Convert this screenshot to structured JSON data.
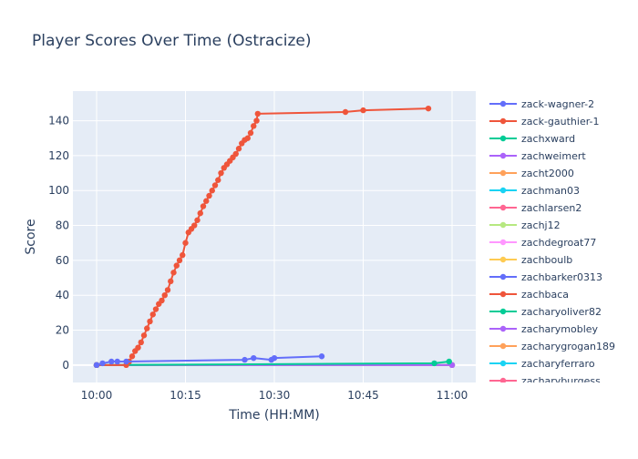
{
  "chart_data": {
    "type": "line",
    "title": "Player Scores Over Time (Ostracize)",
    "xlabel": "Time (HH:MM)",
    "ylabel": "Score",
    "x_ticks": [
      "10:00",
      "10:15",
      "10:30",
      "10:45",
      "11:00"
    ],
    "y_ticks": [
      0,
      20,
      40,
      60,
      80,
      100,
      120,
      140
    ],
    "xlim": [
      "09:56",
      "11:04"
    ],
    "ylim": [
      -10,
      157
    ],
    "grid": true,
    "legend_position": "right",
    "legend_clipped_after": "zacharyburgess",
    "series": [
      {
        "name": "zack-wagner-2",
        "color": "#636efa",
        "points": [
          [
            "10:00",
            0
          ],
          [
            "10:01",
            1
          ],
          [
            "10:02.5",
            2
          ],
          [
            "10:03.5",
            2
          ],
          [
            "10:05",
            2
          ],
          [
            "10:25",
            3
          ],
          [
            "10:26.5",
            4
          ],
          [
            "10:29.5",
            3
          ],
          [
            "10:30",
            4
          ],
          [
            "10:38",
            5
          ]
        ]
      },
      {
        "name": "zack-gauthier-1",
        "color": "#ef553b",
        "points": [
          [
            "10:00",
            0
          ],
          [
            "10:05",
            0
          ],
          [
            "10:05.5",
            2
          ],
          [
            "10:06",
            5
          ],
          [
            "10:06.5",
            8
          ],
          [
            "10:07",
            10
          ],
          [
            "10:07.5",
            13
          ],
          [
            "10:08",
            17
          ],
          [
            "10:08.5",
            21
          ],
          [
            "10:09",
            25
          ],
          [
            "10:09.5",
            29
          ],
          [
            "10:10",
            32
          ],
          [
            "10:10.5",
            35
          ],
          [
            "10:11",
            37
          ],
          [
            "10:11.5",
            40
          ],
          [
            "10:12",
            43
          ],
          [
            "10:12.5",
            48
          ],
          [
            "10:13",
            53
          ],
          [
            "10:13.5",
            57
          ],
          [
            "10:14",
            60
          ],
          [
            "10:14.5",
            63
          ],
          [
            "10:15",
            70
          ],
          [
            "10:15.5",
            76
          ],
          [
            "10:16",
            78
          ],
          [
            "10:16.5",
            80
          ],
          [
            "10:17",
            83
          ],
          [
            "10:17.5",
            87
          ],
          [
            "10:18",
            91
          ],
          [
            "10:18.5",
            94
          ],
          [
            "10:19",
            97
          ],
          [
            "10:19.5",
            100
          ],
          [
            "10:20",
            103
          ],
          [
            "10:20.5",
            106
          ],
          [
            "10:21",
            110
          ],
          [
            "10:21.5",
            113
          ],
          [
            "10:22",
            115
          ],
          [
            "10:22.5",
            117
          ],
          [
            "10:23",
            119
          ],
          [
            "10:23.5",
            121
          ],
          [
            "10:24",
            124
          ],
          [
            "10:24.5",
            127
          ],
          [
            "10:25",
            129
          ],
          [
            "10:25.5",
            130
          ],
          [
            "10:26",
            133
          ],
          [
            "10:26.5",
            137
          ],
          [
            "10:27",
            140
          ],
          [
            "10:27.2",
            144
          ],
          [
            "10:42",
            145
          ],
          [
            "10:45",
            146
          ],
          [
            "10:56",
            147
          ]
        ]
      },
      {
        "name": "zachxward",
        "color": "#00cc96",
        "points": [
          [
            "10:00",
            0
          ],
          [
            "10:57",
            1
          ],
          [
            "10:59.5",
            2
          ]
        ]
      },
      {
        "name": "zachweimert",
        "color": "#ab63fa",
        "points": [
          [
            "10:00",
            0
          ],
          [
            "11:00",
            0
          ]
        ]
      },
      {
        "name": "zacht2000",
        "color": "#ffa15a",
        "points": [
          [
            "10:00",
            0
          ],
          [
            "11:00",
            0
          ]
        ]
      },
      {
        "name": "zachman03",
        "color": "#19d3f3",
        "points": [
          [
            "10:00",
            0
          ],
          [
            "11:00",
            0
          ]
        ]
      },
      {
        "name": "zachlarsen2",
        "color": "#ff6692",
        "points": [
          [
            "10:00",
            0
          ],
          [
            "11:00",
            0
          ]
        ]
      },
      {
        "name": "zachj12",
        "color": "#b6e880",
        "points": [
          [
            "10:00",
            0
          ],
          [
            "11:00",
            0
          ]
        ]
      },
      {
        "name": "zachdegroat77",
        "color": "#ff97ff",
        "points": [
          [
            "10:00",
            0
          ],
          [
            "11:00",
            0
          ]
        ]
      },
      {
        "name": "zachboulb",
        "color": "#fecb52",
        "points": [
          [
            "10:00",
            0
          ]
        ]
      },
      {
        "name": "zachbarker0313",
        "color": "#636efa",
        "points": [
          [
            "10:00",
            0
          ]
        ]
      },
      {
        "name": "zachbaca",
        "color": "#ef553b",
        "points": [
          [
            "10:00",
            0
          ]
        ]
      },
      {
        "name": "zacharyoliver82",
        "color": "#00cc96",
        "points": [
          [
            "10:00",
            0
          ]
        ]
      },
      {
        "name": "zacharymobley",
        "color": "#ab63fa",
        "points": [
          [
            "10:00",
            0
          ]
        ]
      },
      {
        "name": "zacharygrogan189",
        "color": "#ffa15a",
        "points": [
          [
            "10:00",
            0
          ]
        ]
      },
      {
        "name": "zacharyferraro",
        "color": "#19d3f3",
        "points": [
          [
            "10:00",
            0
          ]
        ]
      },
      {
        "name": "zacharyburgess",
        "color": "#ff6692",
        "points": [
          [
            "10:00",
            0
          ]
        ]
      }
    ]
  },
  "colors": {
    "plot_bg": "#e5ecf6",
    "grid": "#ffffff",
    "text": "#2a3f5f",
    "page_bg": "#ffffff"
  }
}
